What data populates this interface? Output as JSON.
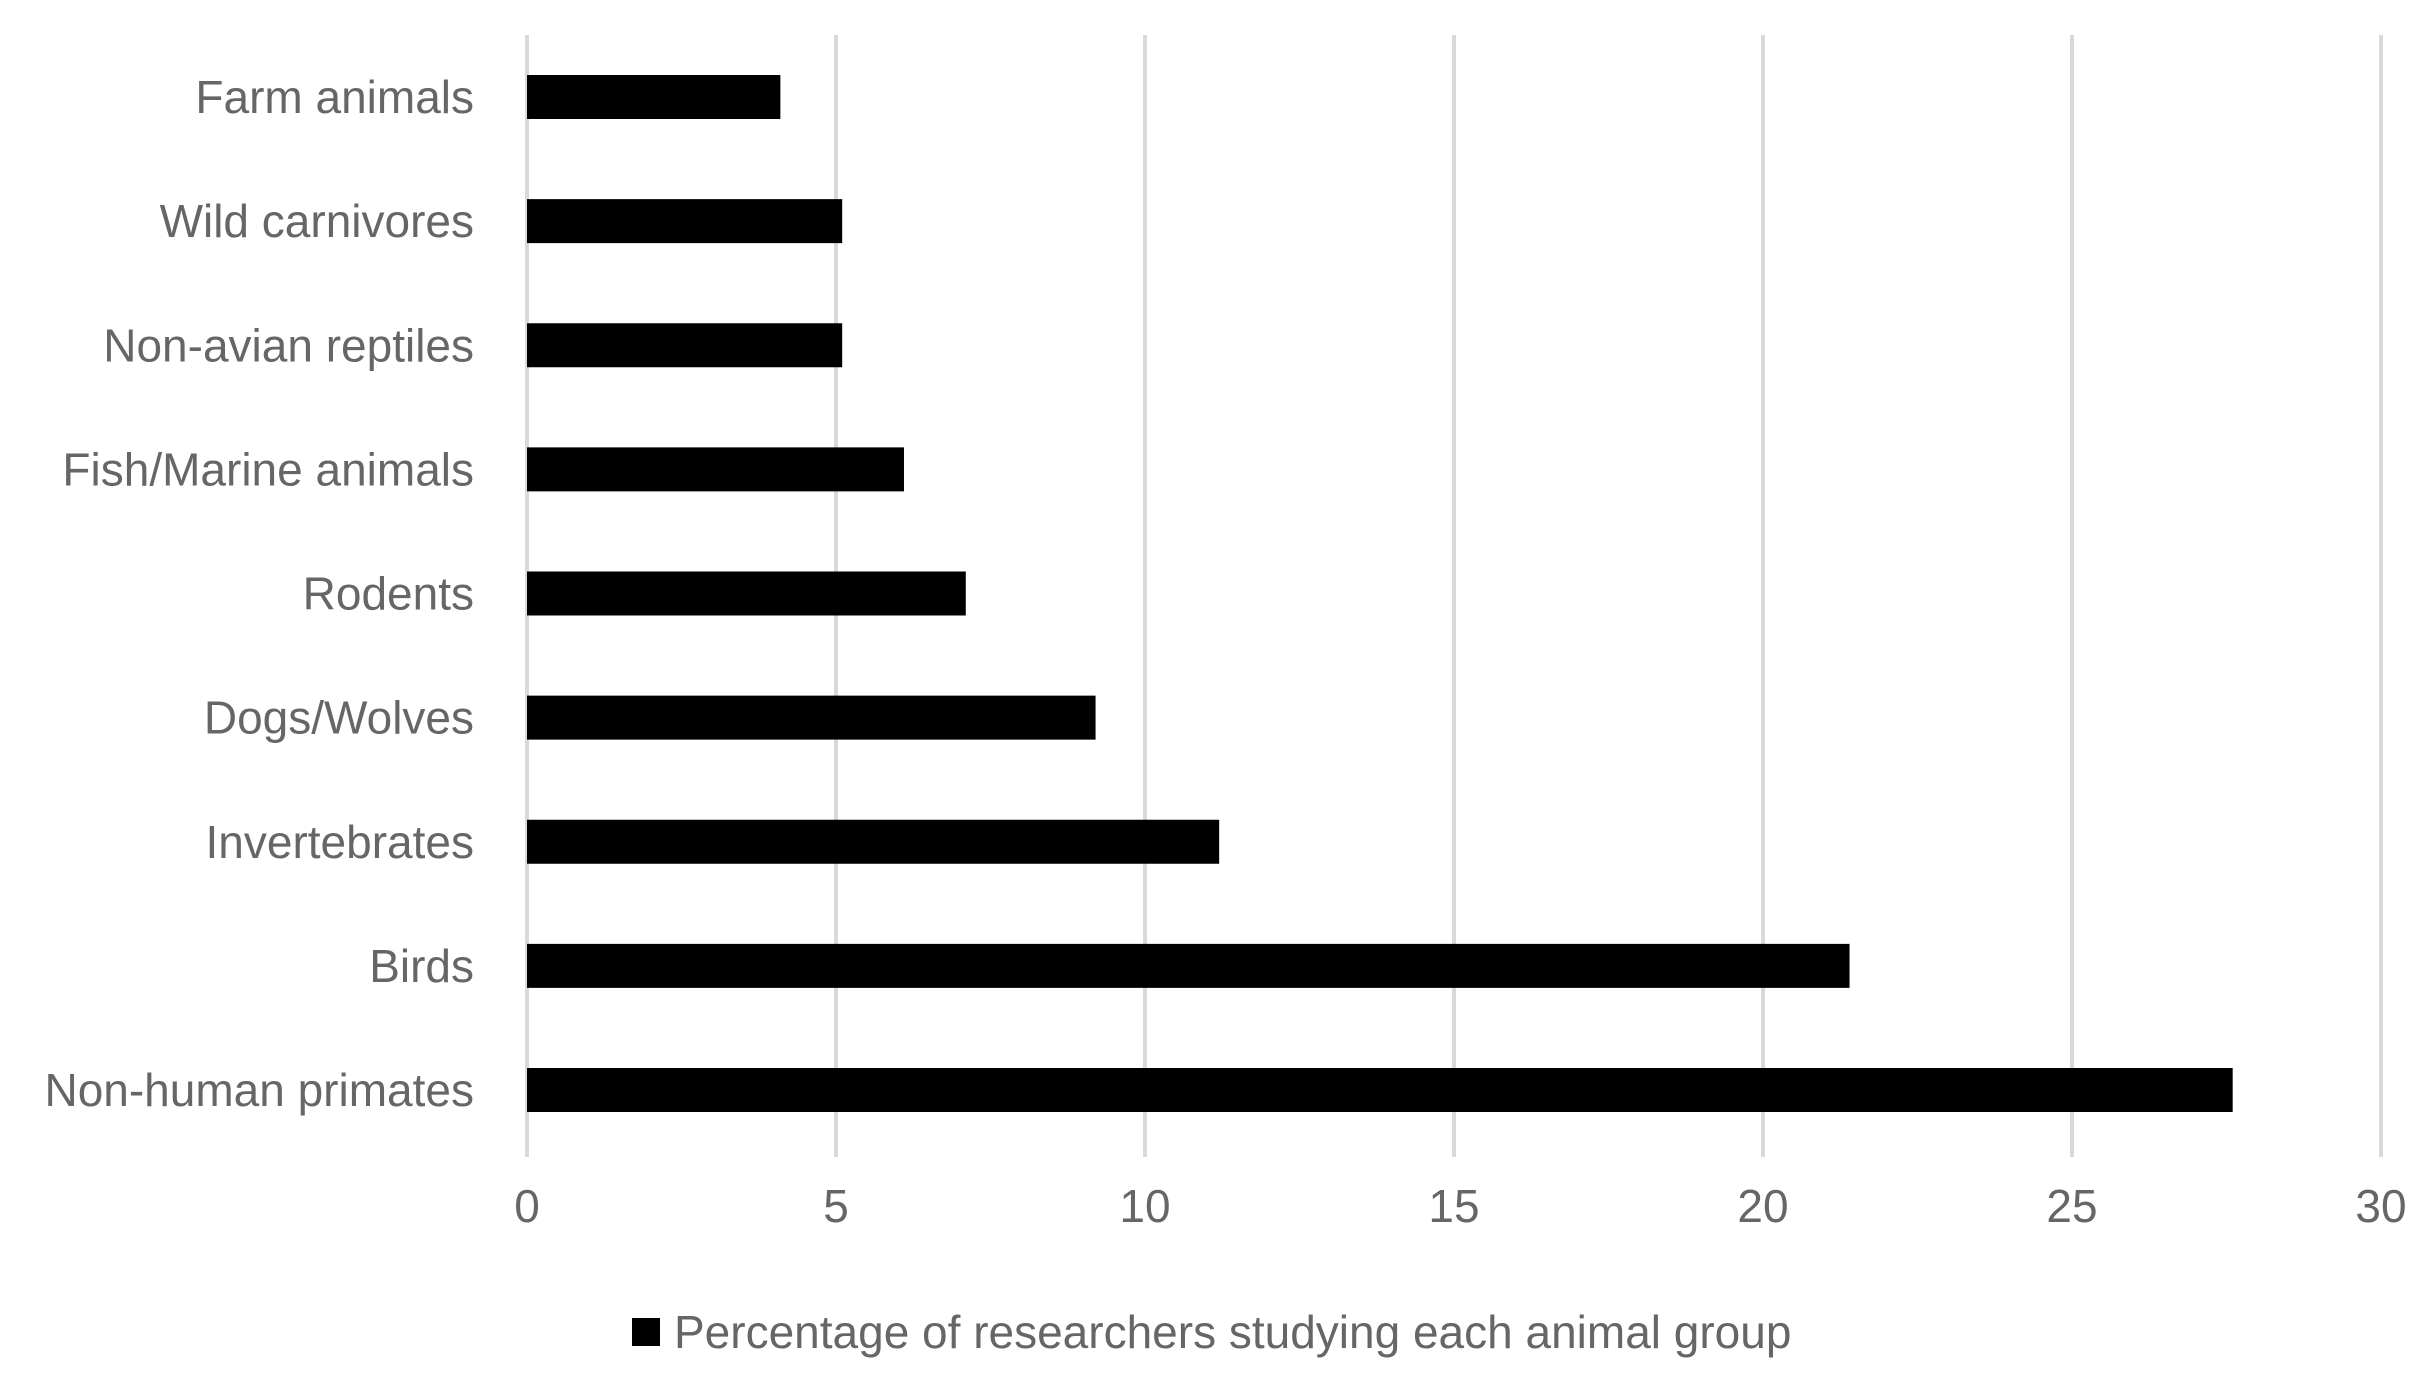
{
  "chart_data": {
    "type": "bar",
    "orientation": "horizontal",
    "categories": [
      "Farm animals",
      "Wild carnivores",
      "Non-avian reptiles",
      "Fish/Marine animals",
      "Rodents",
      "Dogs/Wolves",
      "Invertebrates",
      "Birds",
      "Non-human primates"
    ],
    "series": [
      {
        "name": "Percentage of researchers studying each animal group",
        "values": [
          4.1,
          5.1,
          5.1,
          6.1,
          7.1,
          9.2,
          11.2,
          21.4,
          27.6
        ],
        "color": "#000000"
      }
    ],
    "title": "",
    "xlabel": "",
    "ylabel": "",
    "xlim": [
      0,
      30
    ],
    "xticks": [
      0,
      5,
      10,
      15,
      20,
      25,
      30
    ],
    "grid": "vertical",
    "legend": "bottom",
    "colors": {
      "bar": "#000000",
      "grid": "#d9d9d9",
      "text": "#666666"
    }
  }
}
